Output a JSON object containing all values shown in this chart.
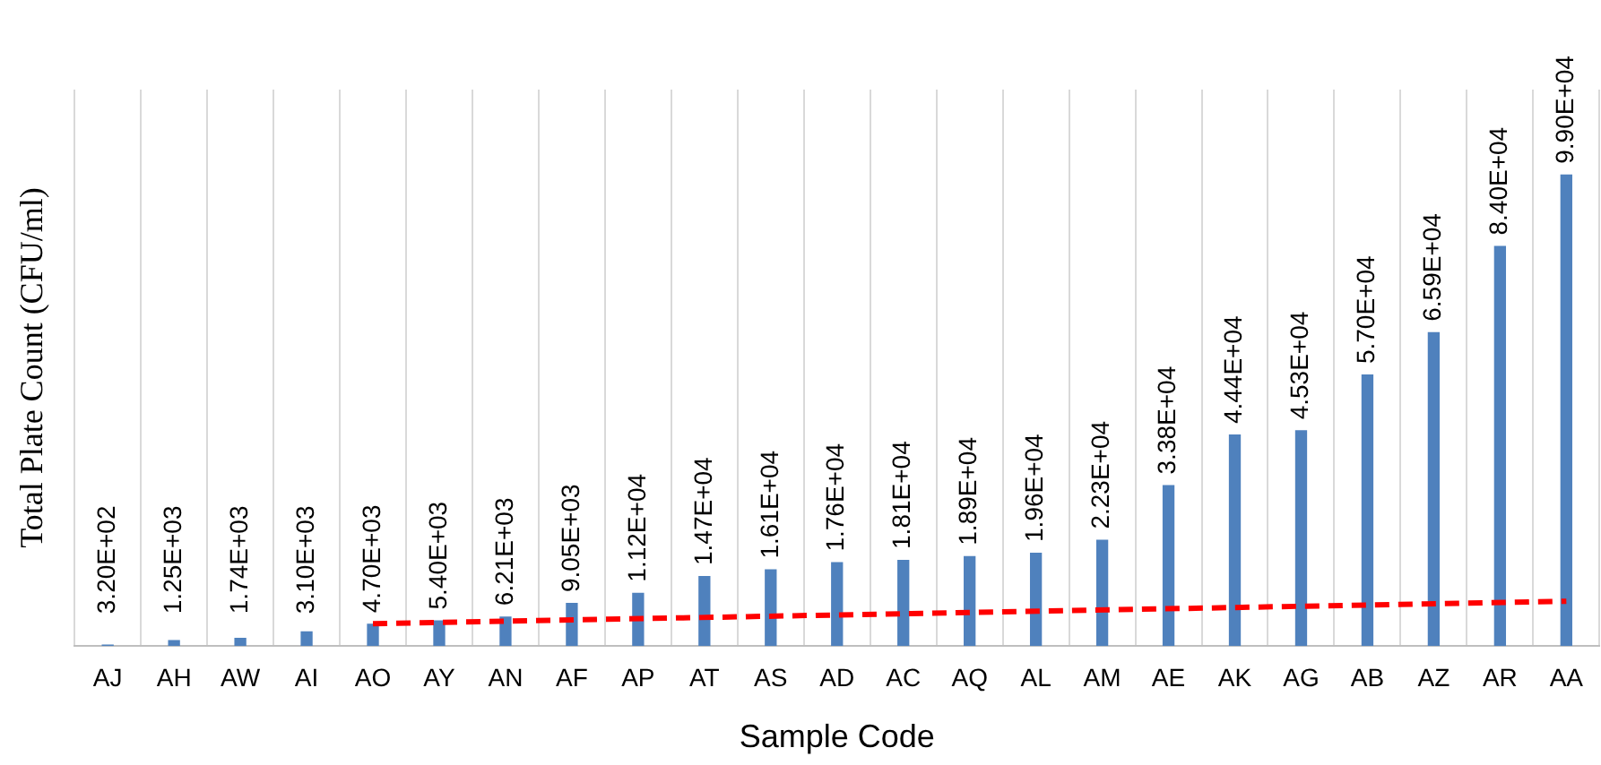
{
  "chart_data": {
    "type": "bar",
    "xlabel": "Sample Code",
    "ylabel": "Total Plate Count (CFU/ml)",
    "grid": "x",
    "tick_labels": "x",
    "categories": [
      "AJ",
      "AH",
      "AW",
      "AI",
      "AO",
      "AY",
      "AN",
      "AF",
      "AP",
      "AT",
      "AS",
      "AD",
      "AC",
      "AQ",
      "AL",
      "AM",
      "AE",
      "AK",
      "AG",
      "AB",
      "AZ",
      "AR",
      "AA"
    ],
    "series": [
      {
        "color": "#4f81bd",
        "values": [
          320,
          1250,
          1740,
          3100,
          4700,
          5400,
          6210,
          9050,
          11200,
          14700,
          16100,
          17600,
          18100,
          18900,
          19600,
          22300,
          33800,
          44400,
          45300,
          57000,
          65900,
          84000,
          99000
        ],
        "value_labels": [
          "3.20E+02",
          "1.25E+03",
          "1.74E+03",
          "3.10E+03",
          "4.70E+03",
          "5.40E+03",
          "6.21E+03",
          "9.05E+03",
          "1.12E+04",
          "1.47E+04",
          "1.61E+04",
          "1.76E+04",
          "1.81E+04",
          "1.89E+04",
          "1.96E+04",
          "2.23E+04",
          "3.38E+04",
          "4.44E+04",
          "4.53E+04",
          "5.70E+04",
          "6.59E+04",
          "8.40E+04",
          "9.90E+04"
        ]
      },
      {
        "type": "line",
        "color": "#ff0000",
        "line_style": "dashed",
        "marker": "none",
        "x": [
          "AO",
          "AA"
        ],
        "values": [
          4700,
          9400
        ]
      }
    ]
  }
}
